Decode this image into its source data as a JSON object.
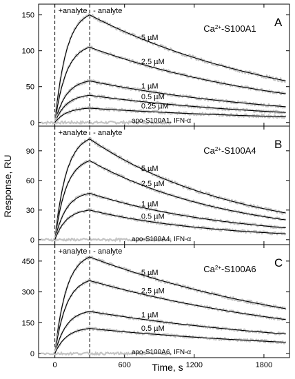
{
  "figure": {
    "xlabel": "Time, s",
    "ylabel": "Response, RU",
    "x_ticks": [
      0,
      600,
      1200,
      1800
    ]
  },
  "chart_data": [
    {
      "type": "line",
      "panel_letter": "A",
      "protein": "S100A1",
      "title_prefix": "Ca",
      "title_superscript": "2+",
      "title_suffix": "-S100A1",
      "markers": {
        "injection_start": 0,
        "injection_end": 300,
        "start_label": "+analyte",
        "end_label": "- analyte"
      },
      "xlim": [
        -140,
        2020
      ],
      "ylim": [
        -5,
        165
      ],
      "y_ticks": [
        0,
        50,
        100,
        150
      ],
      "series": [
        {
          "name": "5 µM",
          "peak": 150,
          "end": 58
        },
        {
          "name": "2.5 µM",
          "peak": 105,
          "end": 40
        },
        {
          "name": "1 µM",
          "peak": 58,
          "end": 22
        },
        {
          "name": "0.5 µM",
          "peak": 38,
          "end": 14
        },
        {
          "name": "0.25 µM",
          "peak": 20,
          "end": 8
        }
      ],
      "apo_label": "apo-S100A1, IFN-α",
      "apo_value": 0
    },
    {
      "type": "line",
      "panel_letter": "B",
      "protein": "S100A4",
      "title_prefix": "Ca",
      "title_superscript": "2+",
      "title_suffix": "-S100A4",
      "markers": {
        "injection_start": 0,
        "injection_end": 300,
        "start_label": "+analyte",
        "end_label": "- analyte"
      },
      "xlim": [
        -140,
        2020
      ],
      "ylim": [
        -5,
        115
      ],
      "y_ticks": [
        0,
        30,
        60,
        90
      ],
      "series": [
        {
          "name": "5 µM",
          "peak": 102,
          "end": 27
        },
        {
          "name": "2.5 µM",
          "peak": 80,
          "end": 20
        },
        {
          "name": "1 µM",
          "peak": 47,
          "end": 12
        },
        {
          "name": "0.5 µM",
          "peak": 30,
          "end": 6
        }
      ],
      "apo_label": "apo-S100A4, IFN-α",
      "apo_value": 0
    },
    {
      "type": "line",
      "panel_letter": "C",
      "protein": "S100A6",
      "title_prefix": "Ca",
      "title_superscript": "2+",
      "title_suffix": "-S100A6",
      "markers": {
        "injection_start": 0,
        "injection_end": 300,
        "start_label": "+analyte",
        "end_label": "- analyte"
      },
      "xlim": [
        -140,
        2020
      ],
      "ylim": [
        -20,
        530
      ],
      "y_ticks": [
        0,
        150,
        300,
        450
      ],
      "series": [
        {
          "name": "5 µM",
          "peak": 470,
          "end": 218
        },
        {
          "name": "2.5 µM",
          "peak": 355,
          "end": 165
        },
        {
          "name": "1 µM",
          "peak": 205,
          "end": 95
        },
        {
          "name": "0.5 µM",
          "peak": 122,
          "end": 55
        }
      ],
      "apo_label": "apo-S100A6, IFN-α",
      "apo_value": 0
    }
  ]
}
